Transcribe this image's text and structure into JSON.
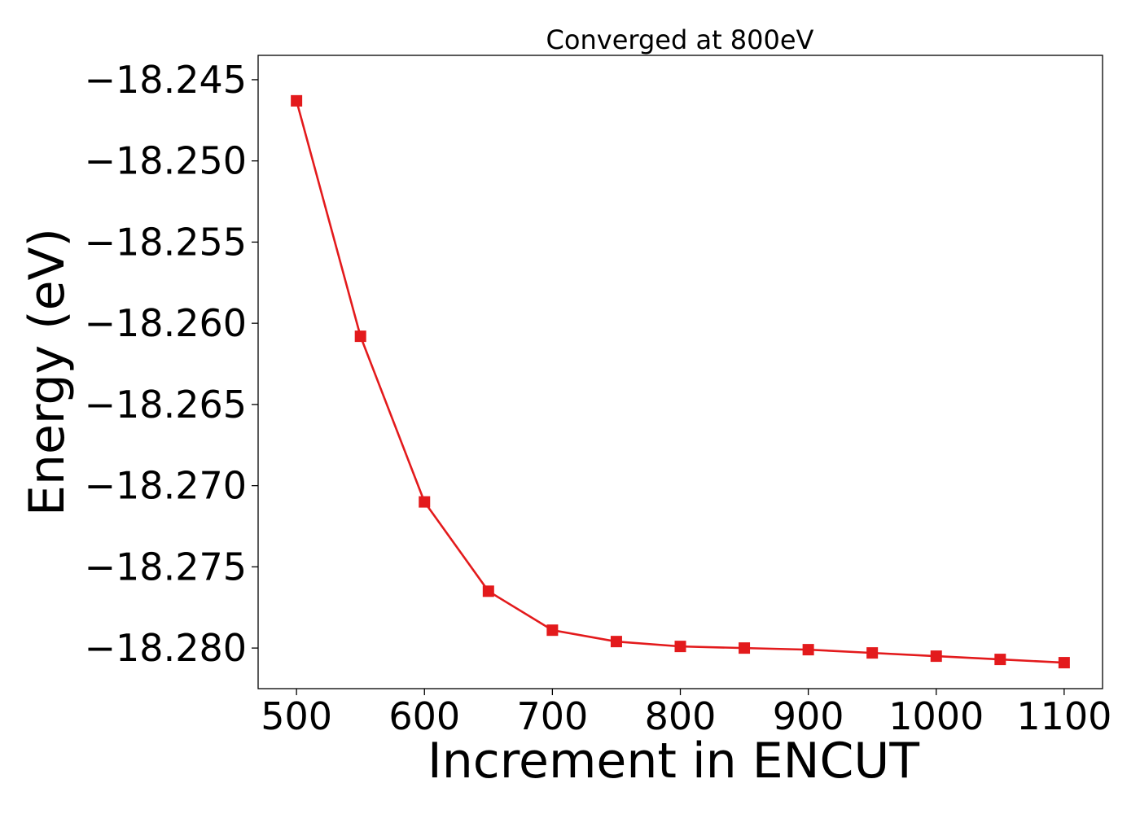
{
  "chart_data": {
    "type": "line",
    "title": "Converged at 800eV",
    "xlabel": "Increment in ENCUT",
    "ylabel": "Energy (eV)",
    "xlim": [
      470,
      1130
    ],
    "ylim": [
      -18.2825,
      -18.2435
    ],
    "x_ticks": [
      500,
      600,
      700,
      800,
      900,
      1000,
      1100
    ],
    "x_tick_labels": [
      "500",
      "600",
      "700",
      "800",
      "900",
      "1000",
      "1100"
    ],
    "y_ticks": [
      -18.245,
      -18.25,
      -18.255,
      -18.26,
      -18.265,
      -18.27,
      -18.275,
      -18.28
    ],
    "y_tick_labels": [
      "−18.245",
      "−18.250",
      "−18.255",
      "−18.260",
      "−18.265",
      "−18.270",
      "−18.275",
      "−18.280"
    ],
    "grid": false,
    "series": [
      {
        "color": "#e31a1c",
        "marker": "square",
        "x": [
          500,
          550,
          600,
          650,
          700,
          750,
          800,
          850,
          900,
          950,
          1000,
          1050,
          1100
        ],
        "y": [
          -18.2463,
          -18.2608,
          -18.271,
          -18.2765,
          -18.2789,
          -18.2796,
          -18.2799,
          -18.28,
          -18.2801,
          -18.2803,
          -18.2805,
          -18.2807,
          -18.2809
        ]
      }
    ]
  }
}
